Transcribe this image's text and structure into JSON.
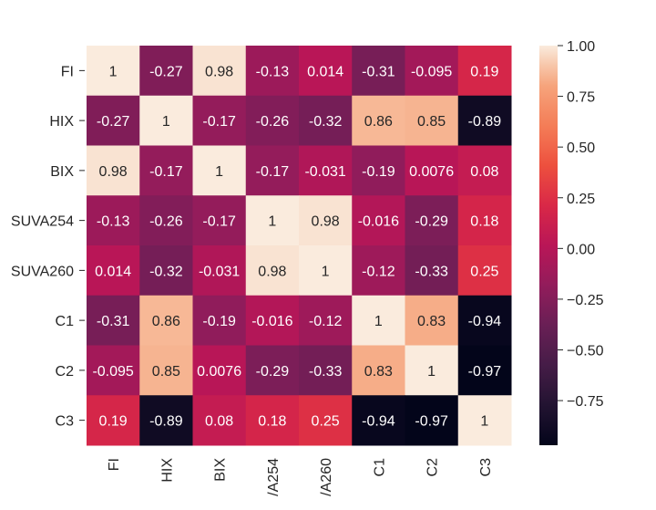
{
  "chart_data": {
    "type": "heatmap",
    "title": "",
    "row_labels": [
      "FI",
      "HIX",
      "BIX",
      "SUVA254",
      "SUVA260",
      "C1",
      "C2",
      "C3"
    ],
    "col_labels": [
      "FI",
      "HIX",
      "BIX",
      "/A254",
      "/A260",
      "C1",
      "C2",
      "C3"
    ],
    "values": [
      [
        1,
        -0.27,
        0.98,
        -0.13,
        0.014,
        -0.31,
        -0.095,
        0.19
      ],
      [
        -0.27,
        1,
        -0.17,
        -0.26,
        -0.32,
        0.86,
        0.85,
        -0.89
      ],
      [
        0.98,
        -0.17,
        1,
        -0.17,
        -0.031,
        -0.19,
        0.0076,
        0.08
      ],
      [
        -0.13,
        -0.26,
        -0.17,
        1,
        0.98,
        -0.016,
        -0.29,
        0.18
      ],
      [
        0.014,
        -0.32,
        -0.031,
        0.98,
        1,
        -0.12,
        -0.33,
        0.25
      ],
      [
        -0.31,
        0.86,
        -0.19,
        -0.016,
        -0.12,
        1,
        0.83,
        -0.94
      ],
      [
        -0.095,
        0.85,
        0.0076,
        -0.29,
        -0.33,
        0.83,
        1,
        -0.97
      ],
      [
        0.19,
        -0.89,
        0.08,
        0.18,
        0.25,
        -0.94,
        -0.97,
        1
      ]
    ],
    "value_labels": [
      [
        "1",
        "-0.27",
        "0.98",
        "-0.13",
        "0.014",
        "-0.31",
        "-0.095",
        "0.19"
      ],
      [
        "-0.27",
        "1",
        "-0.17",
        "-0.26",
        "-0.32",
        "0.86",
        "0.85",
        "-0.89"
      ],
      [
        "0.98",
        "-0.17",
        "1",
        "-0.17",
        "-0.031",
        "-0.19",
        "0.0076",
        "0.08"
      ],
      [
        "-0.13",
        "-0.26",
        "-0.17",
        "1",
        "0.98",
        "-0.016",
        "-0.29",
        "0.18"
      ],
      [
        "0.014",
        "-0.32",
        "-0.031",
        "0.98",
        "1",
        "-0.12",
        "-0.33",
        "0.25"
      ],
      [
        "-0.31",
        "0.86",
        "-0.19",
        "-0.016",
        "-0.12",
        "1",
        "0.83",
        "-0.94"
      ],
      [
        "-0.095",
        "0.85",
        "0.0076",
        "-0.29",
        "-0.33",
        "0.83",
        "1",
        "-0.97"
      ],
      [
        "0.19",
        "-0.89",
        "0.08",
        "0.18",
        "0.25",
        "-0.94",
        "-0.97",
        "1"
      ]
    ],
    "colormap": "rocket",
    "vmin": -0.97,
    "vmax": 1.0,
    "colorbar_ticks": [
      1.0,
      0.75,
      0.5,
      0.25,
      0.0,
      -0.25,
      -0.5,
      -0.75
    ],
    "colorbar_tick_labels": [
      "1.00",
      "0.75",
      "0.50",
      "0.25",
      "0.00",
      "−0.25",
      "−0.50",
      "−0.75"
    ]
  }
}
